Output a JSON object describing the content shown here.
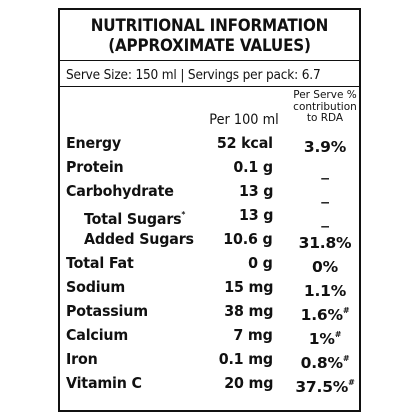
{
  "label": {
    "title_line1": "NUTRITIONAL INFORMATION",
    "title_line2": "(APPROXIMATE VALUES)",
    "serve_info": "Serve Size: 150 ml | Servings per pack: 6.7",
    "col_per100": "Per 100 ml",
    "col_rda": "Per Serve % contribution to RDA"
  },
  "rows": [
    {
      "name": "Energy",
      "per100": "52 kcal",
      "rda": "3.9%",
      "mark": ""
    },
    {
      "name": "Protein",
      "per100": "0.1 g",
      "rda": "_",
      "mark": ""
    },
    {
      "name": "Carbohydrate",
      "per100": "13 g",
      "rda": "_",
      "mark": ""
    },
    {
      "name": "Total Sugars",
      "name_mark": "*",
      "per100": "13 g",
      "rda": "_",
      "mark": ""
    },
    {
      "name": "Added Sugars",
      "per100": "10.6 g",
      "rda": "31.8%",
      "mark": ""
    },
    {
      "name": "Total Fat",
      "per100": "0 g",
      "rda": "0%",
      "mark": ""
    },
    {
      "name": "Sodium",
      "per100": "15 mg",
      "rda": "1.1%",
      "mark": ""
    },
    {
      "name": "Potassium",
      "per100": "38 mg",
      "rda": "1.6%",
      "mark": "#"
    },
    {
      "name": "Calcium",
      "per100": "7 mg",
      "rda": "1%",
      "mark": "#"
    },
    {
      "name": "Iron",
      "per100": "0.1 mg",
      "rda": "0.8%",
      "mark": "#"
    },
    {
      "name": "Vitamin C",
      "per100": "20 mg",
      "rda": "37.5%",
      "mark": "#"
    }
  ]
}
